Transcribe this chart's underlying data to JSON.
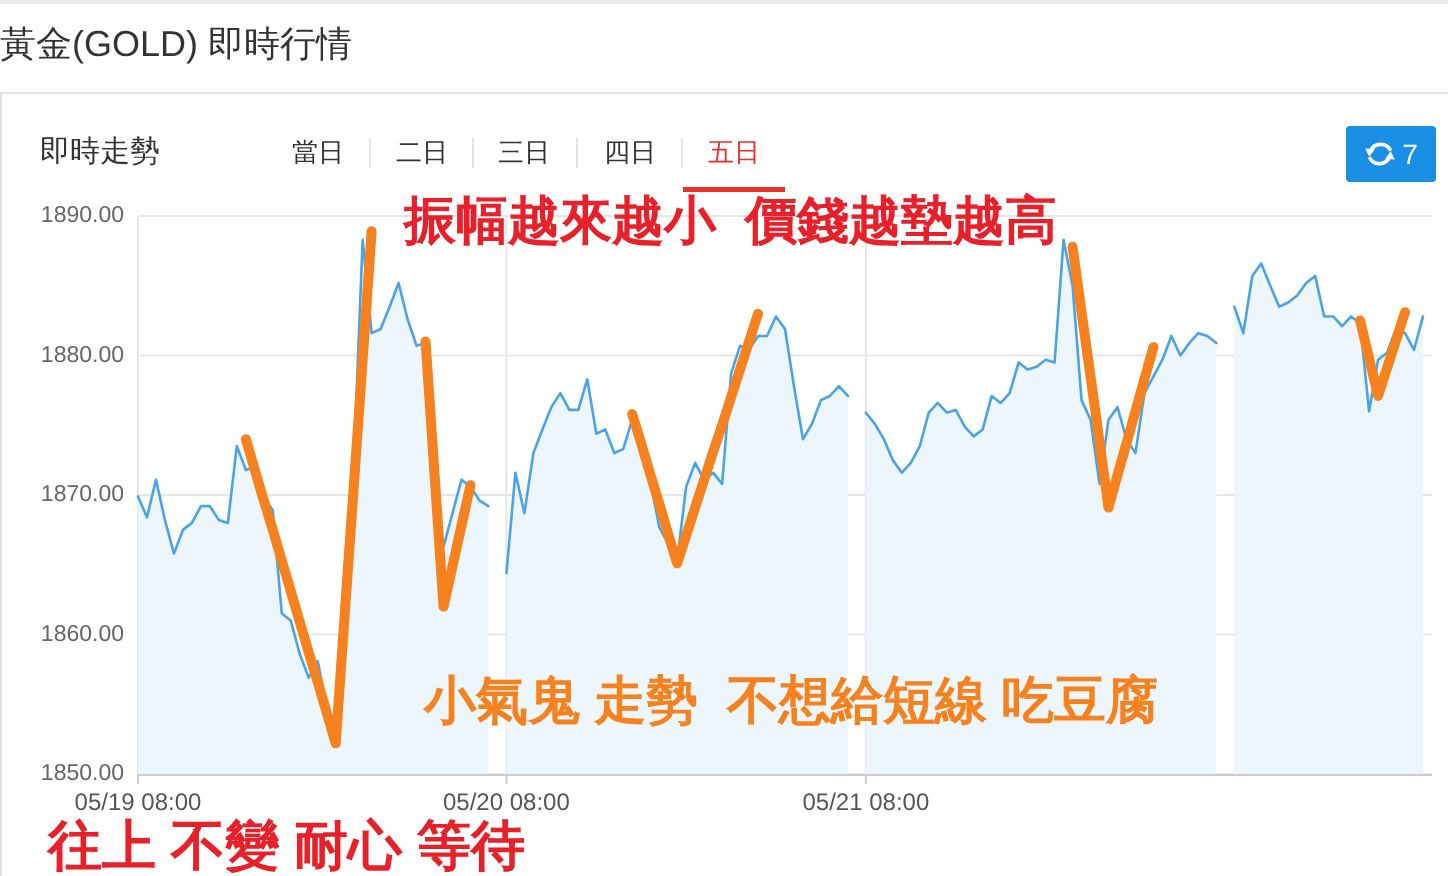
{
  "chart_data": {
    "type": "area",
    "title": "黃金(GOLD) 即時行情",
    "subtitle": "即時走勢",
    "annotations": [
      "當日",
      "二日",
      "三日",
      "四日",
      "五日",
      "7",
      "振幅越來越小  價錢越墊越高",
      "小氣鬼 走勢  不想給短線 吃豆腐",
      "往上 不變 耐心 等待"
    ],
    "categories": [
      "05/19 08:00",
      null,
      null,
      null,
      null,
      null,
      null,
      null,
      null,
      null,
      null,
      null,
      null,
      null,
      null,
      null,
      null,
      null,
      null,
      null,
      null,
      null,
      null,
      null,
      null,
      null,
      null,
      null,
      null,
      null,
      null,
      null,
      null,
      null,
      null,
      null,
      null,
      null,
      null,
      null,
      null,
      "05/20 08:00",
      null,
      null,
      null,
      null,
      null,
      null,
      null,
      null,
      null,
      null,
      null,
      null,
      null,
      null,
      null,
      null,
      null,
      null,
      null,
      null,
      null,
      null,
      null,
      null,
      null,
      null,
      null,
      null,
      null,
      null,
      null,
      null,
      null,
      null,
      null,
      null,
      null,
      null,
      null,
      "05/21 08:00",
      null,
      null,
      null,
      null,
      null,
      null,
      null,
      null,
      null,
      null,
      null,
      null,
      null,
      null,
      null,
      null,
      null,
      null,
      null,
      null,
      null,
      null,
      null,
      null,
      null,
      null,
      null,
      null,
      null,
      null,
      null,
      null,
      null,
      null,
      null,
      null,
      null,
      null,
      null,
      null,
      null,
      null,
      null,
      null,
      null,
      null,
      null,
      null,
      null,
      null,
      null,
      null,
      null,
      null,
      null,
      null,
      null,
      null,
      null,
      null,
      null,
      null,
      null
    ],
    "series": [
      {
        "color": "#4aa3e8",
        "values": [
          1869.9,
          1868.4,
          1871.1,
          1868.2,
          1865.8,
          1867.5,
          1868.0,
          1869.2,
          1869.2,
          1868.2,
          1868.0,
          1873.5,
          1871.8,
          1872.0,
          1869.9,
          1868.9,
          1861.5,
          1861.0,
          1858.6,
          1856.9,
          1858.1,
          1854.8,
          1853.5,
          1864.9,
          1872.0,
          1888.3,
          1881.6,
          1881.9,
          1883.5,
          1885.2,
          1882.6,
          1880.7,
          1880.9,
          1868.2,
          1866.3,
          1868.7,
          1871.1,
          1870.6,
          1869.6,
          1869.2,
          null,
          1864.4,
          1871.6,
          1868.7,
          1873.0,
          1874.7,
          1876.3,
          1877.3,
          1876.1,
          1876.1,
          1878.3,
          1874.4,
          1874.7,
          1873.0,
          1873.3,
          1875.4,
          1873.0,
          1871.1,
          1867.7,
          1866.5,
          1865.3,
          1870.6,
          1872.3,
          1871.1,
          1871.6,
          1870.8,
          1878.7,
          1880.7,
          1880.4,
          1881.4,
          1881.4,
          1882.8,
          1881.9,
          1877.8,
          1874.0,
          1875.1,
          1876.8,
          1877.1,
          1877.8,
          1877.1,
          null,
          1875.9,
          1875.1,
          1874.0,
          1872.5,
          1871.6,
          1872.3,
          1873.5,
          1875.9,
          1876.6,
          1875.9,
          1876.1,
          1874.9,
          1874.2,
          1874.7,
          1877.1,
          1876.6,
          1877.3,
          1879.5,
          1879.0,
          1879.2,
          1879.7,
          1879.5,
          1888.3,
          1885.0,
          1876.8,
          1875.4,
          1870.8,
          1875.4,
          1876.3,
          1874.0,
          1873.0,
          1877.3,
          1878.5,
          1879.7,
          1881.4,
          1880.0,
          1880.9,
          1881.6,
          1881.4,
          1880.9,
          null,
          1883.5,
          1881.6,
          1885.7,
          1886.6,
          1885.0,
          1883.5,
          1883.8,
          1884.3,
          1885.2,
          1885.7,
          1882.8,
          1882.8,
          1882.1,
          1882.8,
          1882.3,
          1876.0,
          1879.7,
          1880.2,
          1881.9,
          1881.6,
          1880.4,
          1882.8,
          null
        ]
      },
      {
        "type": "line",
        "color": "#f5821f",
        "values": [
          null,
          null,
          null,
          null,
          null,
          null,
          null,
          null,
          null,
          null,
          null,
          null,
          1874.0,
          1871.8,
          1869.6,
          1867.5,
          1865.3,
          1863.1,
          1860.9,
          1858.7,
          1856.6,
          1854.4,
          1852.2,
          1861.4,
          1870.5,
          1879.7,
          1888.9,
          null,
          null,
          null,
          null,
          null,
          1881.0,
          1871.5,
          1862.0,
          1864.9,
          1867.8,
          1870.7,
          null,
          null,
          null,
          null,
          null,
          null,
          null,
          null,
          null,
          null,
          null,
          null,
          null,
          null,
          null,
          null,
          null,
          1875.8,
          1873.7,
          1871.5,
          1869.4,
          1867.2,
          1865.1,
          1867.1,
          1869.1,
          1871.1,
          1873.1,
          1875.0,
          1877.0,
          1879.0,
          1881.0,
          1883.0,
          null,
          null,
          null,
          null,
          null,
          null,
          null,
          null,
          null,
          null,
          null,
          null,
          null,
          null,
          null,
          null,
          null,
          null,
          null,
          null,
          null,
          null,
          null,
          null,
          null,
          null,
          null,
          null,
          null,
          null,
          null,
          null,
          null,
          null,
          1887.8,
          1883.1,
          1878.5,
          1873.8,
          1869.1,
          1871.4,
          1873.7,
          1876.0,
          1878.3,
          1880.6,
          null,
          null,
          null,
          null,
          null,
          null,
          null,
          null,
          null,
          null,
          null,
          null,
          null,
          null,
          null,
          null,
          null,
          null,
          null,
          null,
          null,
          null,
          1882.5,
          1879.8,
          1877.1,
          1879.1,
          1881.1,
          1883.1,
          null,
          null,
          null
        ]
      }
    ],
    "ylim": [
      1850,
      1890
    ],
    "yticks": [
      {
        "value": 1850,
        "label": "1850.00"
      },
      {
        "value": 1860,
        "label": "1860.00"
      },
      {
        "value": 1870,
        "label": "1870.00"
      },
      {
        "value": 1880,
        "label": "1880.00"
      },
      {
        "value": 1890,
        "label": "1890.00"
      }
    ],
    "grid": true
  }
}
